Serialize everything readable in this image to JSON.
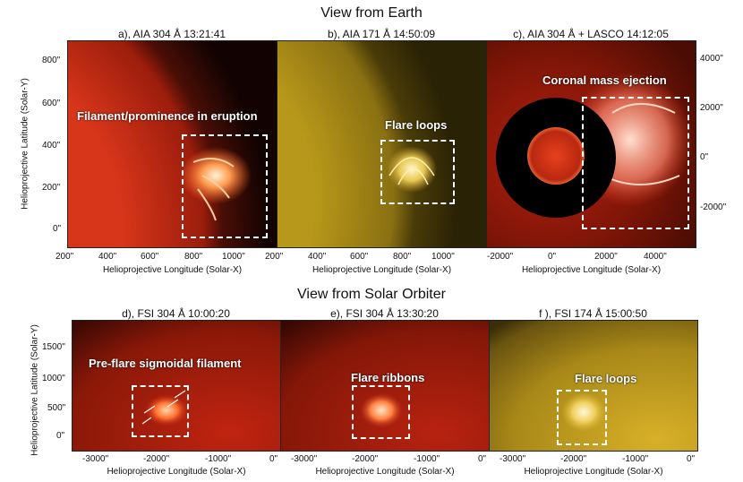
{
  "top": {
    "section_title": "View from Earth",
    "panels": [
      {
        "title": "a), AIA 304 Å  13:21:41",
        "annotation": "Filament/prominence in eruption"
      },
      {
        "title": "b), AIA 171 Å 14:50:09",
        "annotation": "Flare loops"
      },
      {
        "title": "c), AIA 304 Å + LASCO 14:12:05",
        "annotation": "Coronal mass ejection"
      }
    ],
    "y_axis_label": "Helioprojective Latitude (Solar-Y)",
    "x_axis_label": "Helioprojective Longitude (Solar-X)",
    "y_ticks": [
      "800\"",
      "600\"",
      "400\"",
      "200\"",
      "0\""
    ],
    "x_ticks_a": [
      "200\"",
      "400\"",
      "600\"",
      "800\"",
      "1000\""
    ],
    "x_ticks_b": [
      "200\"",
      "400\"",
      "600\"",
      "800\"",
      "1000\""
    ],
    "x_ticks_c": [
      "-2000\"",
      "0\"",
      "2000\"",
      "4000\""
    ],
    "y_ticks_c": [
      "4000\"",
      "2000\"",
      "0\"",
      "-2000\""
    ]
  },
  "bottom": {
    "section_title": "View from Solar Orbiter",
    "panels": [
      {
        "title": "d), FSI 304 Å 10:00:20",
        "annotation": "Pre-flare sigmoidal filament"
      },
      {
        "title": "e), FSI 304 Å 13:30:20",
        "annotation": "Flare ribbons"
      },
      {
        "title": "f ), FSI 174 Å 15:00:50",
        "annotation": "Flare loops"
      }
    ],
    "y_axis_label": "Helioprojective Latitude (Solar-Y)",
    "x_axis_label": "Helioprojective Longitude (Solar-X)",
    "y_ticks": [
      "1500\"",
      "1000\"",
      "500\"",
      "0\""
    ],
    "x_ticks": [
      "-3000\"",
      "-2000\"",
      "-1000\"",
      "0\""
    ]
  },
  "colors": {
    "aia304": "#c2200c",
    "aia171": "#b59a1e",
    "lasco": "#8a1608",
    "fsi174": "#c8a020",
    "box": "#ffffff"
  }
}
